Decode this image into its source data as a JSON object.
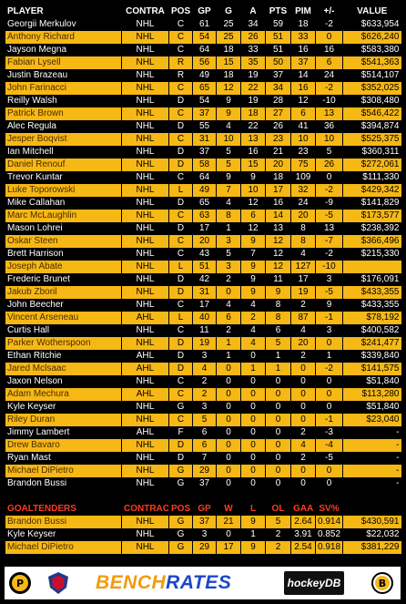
{
  "header": {
    "player": "PLAYER",
    "contract": "CONTRA",
    "pos": "POS",
    "gp": "GP",
    "g": "G",
    "a": "A",
    "pts": "PTS",
    "pim": "PIM",
    "pm": "+/-",
    "value": "VALUE"
  },
  "skaters": [
    {
      "name": "Georgii Merkulov",
      "league": "NHL",
      "pos": "C",
      "gp": "61",
      "g": "25",
      "a": "34",
      "pts": "59",
      "pim": "18",
      "pm": "-2",
      "value": "$633,954"
    },
    {
      "name": "Anthony Richard",
      "league": "NHL",
      "pos": "C",
      "gp": "54",
      "g": "25",
      "a": "26",
      "pts": "51",
      "pim": "33",
      "pm": "0",
      "value": "$626,240"
    },
    {
      "name": "Jayson Megna",
      "league": "NHL",
      "pos": "C",
      "gp": "64",
      "g": "18",
      "a": "33",
      "pts": "51",
      "pim": "16",
      "pm": "16",
      "value": "$583,380"
    },
    {
      "name": "Fabian Lysell",
      "league": "NHL",
      "pos": "R",
      "gp": "56",
      "g": "15",
      "a": "35",
      "pts": "50",
      "pim": "37",
      "pm": "6",
      "value": "$541,363"
    },
    {
      "name": "Justin Brazeau",
      "league": "NHL",
      "pos": "R",
      "gp": "49",
      "g": "18",
      "a": "19",
      "pts": "37",
      "pim": "14",
      "pm": "24",
      "value": "$514,107"
    },
    {
      "name": "John Farinacci",
      "league": "NHL",
      "pos": "C",
      "gp": "65",
      "g": "12",
      "a": "22",
      "pts": "34",
      "pim": "16",
      "pm": "-2",
      "value": "$352,025"
    },
    {
      "name": "Reilly Walsh",
      "league": "NHL",
      "pos": "D",
      "gp": "54",
      "g": "9",
      "a": "19",
      "pts": "28",
      "pim": "12",
      "pm": "-10",
      "value": "$308,480"
    },
    {
      "name": "Patrick Brown",
      "league": "NHL",
      "pos": "C",
      "gp": "37",
      "g": "9",
      "a": "18",
      "pts": "27",
      "pim": "6",
      "pm": "13",
      "value": "$546,422"
    },
    {
      "name": "Alec Regula",
      "league": "NHL",
      "pos": "D",
      "gp": "55",
      "g": "4",
      "a": "22",
      "pts": "26",
      "pim": "41",
      "pm": "36",
      "value": "$394,874"
    },
    {
      "name": "Jesper Boqvist",
      "league": "NHL",
      "pos": "C",
      "gp": "31",
      "g": "10",
      "a": "13",
      "pts": "23",
      "pim": "10",
      "pm": "10",
      "value": "$525,375"
    },
    {
      "name": "Ian Mitchell",
      "league": "NHL",
      "pos": "D",
      "gp": "37",
      "g": "5",
      "a": "16",
      "pts": "21",
      "pim": "23",
      "pm": "5",
      "value": "$360,311"
    },
    {
      "name": "Daniel Renouf",
      "league": "NHL",
      "pos": "D",
      "gp": "58",
      "g": "5",
      "a": "15",
      "pts": "20",
      "pim": "75",
      "pm": "26",
      "value": "$272,061"
    },
    {
      "name": "Trevor Kuntar",
      "league": "NHL",
      "pos": "C",
      "gp": "64",
      "g": "9",
      "a": "9",
      "pts": "18",
      "pim": "109",
      "pm": "0",
      "value": "$111,330"
    },
    {
      "name": "Luke Toporowski",
      "league": "NHL",
      "pos": "L",
      "gp": "49",
      "g": "7",
      "a": "10",
      "pts": "17",
      "pim": "32",
      "pm": "-2",
      "value": "$429,342"
    },
    {
      "name": "Mike Callahan",
      "league": "NHL",
      "pos": "D",
      "gp": "65",
      "g": "4",
      "a": "12",
      "pts": "16",
      "pim": "24",
      "pm": "-9",
      "value": "$141,829"
    },
    {
      "name": "Marc McLaughlin",
      "league": "NHL",
      "pos": "C",
      "gp": "63",
      "g": "8",
      "a": "6",
      "pts": "14",
      "pim": "20",
      "pm": "-5",
      "value": "$173,577"
    },
    {
      "name": "Mason Lohrei",
      "league": "NHL",
      "pos": "D",
      "gp": "17",
      "g": "1",
      "a": "12",
      "pts": "13",
      "pim": "8",
      "pm": "13",
      "value": "$238,392"
    },
    {
      "name": "Oskar Steen",
      "league": "NHL",
      "pos": "C",
      "gp": "20",
      "g": "3",
      "a": "9",
      "pts": "12",
      "pim": "8",
      "pm": "-7",
      "value": "$366,496"
    },
    {
      "name": "Brett Harrison",
      "league": "NHL",
      "pos": "C",
      "gp": "43",
      "g": "5",
      "a": "7",
      "pts": "12",
      "pim": "4",
      "pm": "-2",
      "value": "$215,330"
    },
    {
      "name": "Joseph Abate",
      "league": "NHL",
      "pos": "L",
      "gp": "51",
      "g": "3",
      "a": "9",
      "pts": "12",
      "pim": "127",
      "pm": "-10",
      "value": ""
    },
    {
      "name": "Frederic Brunet",
      "league": "NHL",
      "pos": "D",
      "gp": "42",
      "g": "2",
      "a": "9",
      "pts": "11",
      "pim": "17",
      "pm": "3",
      "value": "$176,091"
    },
    {
      "name": "Jakub Zboril",
      "league": "NHL",
      "pos": "D",
      "gp": "31",
      "g": "0",
      "a": "9",
      "pts": "9",
      "pim": "19",
      "pm": "-5",
      "value": "$433,355"
    },
    {
      "name": "John Beecher",
      "league": "NHL",
      "pos": "C",
      "gp": "17",
      "g": "4",
      "a": "4",
      "pts": "8",
      "pim": "2",
      "pm": "9",
      "value": "$433,355"
    },
    {
      "name": "Vincent Arseneau",
      "league": "AHL",
      "pos": "L",
      "gp": "40",
      "g": "6",
      "a": "2",
      "pts": "8",
      "pim": "87",
      "pm": "-1",
      "value": "$78,192"
    },
    {
      "name": "Curtis Hall",
      "league": "NHL",
      "pos": "C",
      "gp": "11",
      "g": "2",
      "a": "4",
      "pts": "6",
      "pim": "4",
      "pm": "3",
      "value": "$400,582"
    },
    {
      "name": "Parker Wotherspoon",
      "league": "NHL",
      "pos": "D",
      "gp": "19",
      "g": "1",
      "a": "4",
      "pts": "5",
      "pim": "20",
      "pm": "0",
      "value": "$241,477"
    },
    {
      "name": "Ethan Ritchie",
      "league": "AHL",
      "pos": "D",
      "gp": "3",
      "g": "1",
      "a": "0",
      "pts": "1",
      "pim": "2",
      "pm": "1",
      "value": "$339,840"
    },
    {
      "name": "Jared Mclsaac",
      "league": "AHL",
      "pos": "D",
      "gp": "4",
      "g": "0",
      "a": "1",
      "pts": "1",
      "pim": "0",
      "pm": "-2",
      "value": "$141,575"
    },
    {
      "name": "Jaxon Nelson",
      "league": "NHL",
      "pos": "C",
      "gp": "2",
      "g": "0",
      "a": "0",
      "pts": "0",
      "pim": "0",
      "pm": "0",
      "value": "$51,840"
    },
    {
      "name": "Adam Mechura",
      "league": "AHL",
      "pos": "C",
      "gp": "2",
      "g": "0",
      "a": "0",
      "pts": "0",
      "pim": "0",
      "pm": "0",
      "value": "$113,280"
    },
    {
      "name": "Kyle Keyser",
      "league": "NHL",
      "pos": "G",
      "gp": "3",
      "g": "0",
      "a": "0",
      "pts": "0",
      "pim": "0",
      "pm": "0",
      "value": "$51,840"
    },
    {
      "name": "Riley Duran",
      "league": "NHL",
      "pos": "C",
      "gp": "5",
      "g": "0",
      "a": "0",
      "pts": "0",
      "pim": "0",
      "pm": "-1",
      "value": "$23,040"
    },
    {
      "name": "Jimmy Lambert",
      "league": "AHL",
      "pos": "F",
      "gp": "6",
      "g": "0",
      "a": "0",
      "pts": "0",
      "pim": "2",
      "pm": "-3",
      "value": "-"
    },
    {
      "name": "Drew Bavaro",
      "league": "NHL",
      "pos": "D",
      "gp": "6",
      "g": "0",
      "a": "0",
      "pts": "0",
      "pim": "4",
      "pm": "-4",
      "value": "-"
    },
    {
      "name": "Ryan Mast",
      "league": "NHL",
      "pos": "D",
      "gp": "7",
      "g": "0",
      "a": "0",
      "pts": "0",
      "pim": "2",
      "pm": "-5",
      "value": "-"
    },
    {
      "name": "Michael DiPietro",
      "league": "NHL",
      "pos": "G",
      "gp": "29",
      "g": "0",
      "a": "0",
      "pts": "0",
      "pim": "0",
      "pm": "0",
      "value": "-"
    },
    {
      "name": "Brandon Bussi",
      "league": "NHL",
      "pos": "G",
      "gp": "37",
      "g": "0",
      "a": "0",
      "pts": "0",
      "pim": "0",
      "pm": "0",
      "value": "-"
    }
  ],
  "goalie_header": {
    "label": "GOALTENDERS",
    "contract": "CONTRAC",
    "pos": "POS",
    "gp": "GP",
    "w": "W",
    "l": "L",
    "ol": "OL",
    "gaa": "GAA",
    "svp": "SV%"
  },
  "goalies": [
    {
      "name": "Brandon Bussi",
      "league": "NHL",
      "pos": "G",
      "gp": "37",
      "w": "21",
      "l": "9",
      "ol": "5",
      "gaa": "2.64",
      "svp": "0.914",
      "value": "$430,591"
    },
    {
      "name": "Kyle Keyser",
      "league": "NHL",
      "pos": "G",
      "gp": "3",
      "w": "0",
      "l": "1",
      "ol": "2",
      "gaa": "3.91",
      "svp": "0.852",
      "value": "$22,032"
    },
    {
      "name": "Michael DiPietro",
      "league": "NHL",
      "pos": "G",
      "gp": "29",
      "w": "17",
      "l": "9",
      "ol": "2",
      "gaa": "2.54",
      "svp": "0.918",
      "value": "$381,229"
    }
  ],
  "footer": {
    "bench_part1": "BENCH",
    "bench_part2": "RATES",
    "hockeydb": "hockeyDB"
  },
  "colors": {
    "gold": "#f6b815",
    "black": "#000000",
    "goalie_header": "#ff3b1f"
  }
}
